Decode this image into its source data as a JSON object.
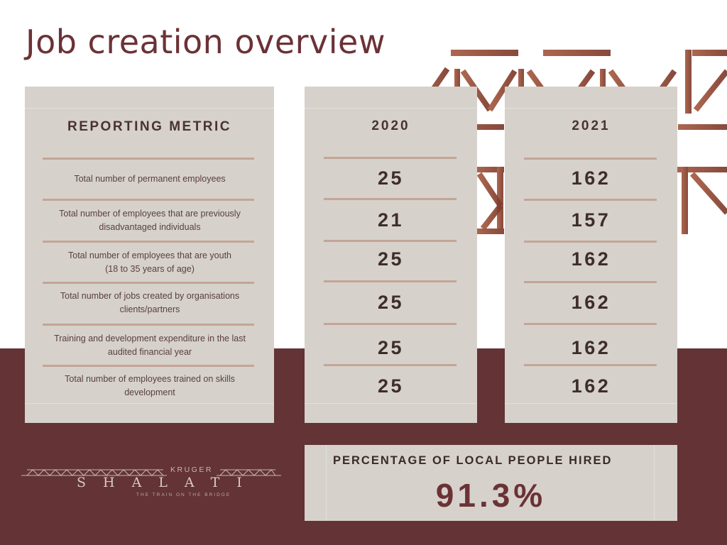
{
  "title": "Job creation overview",
  "colors": {
    "maroon": "#633336",
    "card": "#d6d1cb",
    "accent": "#c3a597",
    "pattern": "#8f4a36"
  },
  "table": {
    "metric_header": "REPORTING METRIC",
    "years": [
      "2020",
      "2021"
    ],
    "rows": [
      {
        "metric_line1": "Total number of permanent employees",
        "metric_line2": "",
        "v2020": "25",
        "v2021": "162"
      },
      {
        "metric_line1": "Total number of employees that are previously",
        "metric_line2": "disadvantaged individuals",
        "v2020": "21",
        "v2021": "157"
      },
      {
        "metric_line1": "Total number of employees that are youth",
        "metric_line2": "(18 to 35 years of age)",
        "v2020": "25",
        "v2021": "162"
      },
      {
        "metric_line1": "Total number of jobs created by organisations",
        "metric_line2": "clients/partners",
        "v2020": "25",
        "v2021": "162"
      },
      {
        "metric_line1": "Training and development expenditure in the last",
        "metric_line2": "audited financial year",
        "v2020": "25",
        "v2021": "162"
      },
      {
        "metric_line1": "Total number of employees trained on skills",
        "metric_line2": "development",
        "v2020": "25",
        "v2021": "162"
      }
    ]
  },
  "highlight": {
    "label": "PERCENTAGE OF LOCAL PEOPLE HIRED",
    "value": "91.3%"
  },
  "logo": {
    "top": "KRUGER",
    "main": "SHALATI",
    "sub": "THE TRAIN ON THE BRIDGE",
    "icon": "bridge-truss-icon"
  },
  "decoration": {
    "icon": "bridge-truss-pattern"
  }
}
